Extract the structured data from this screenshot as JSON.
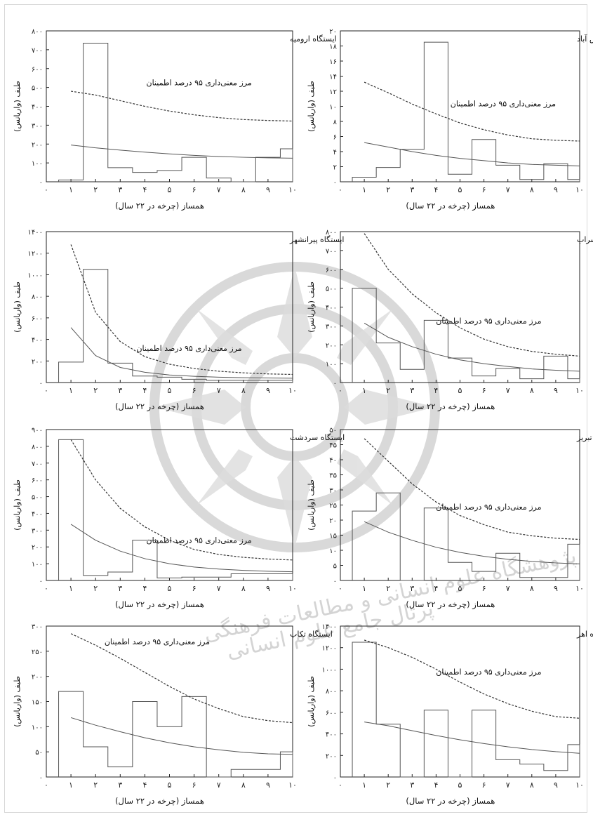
{
  "common": {
    "xlabel": "همساز (چرخه در ۲۲ سال)",
    "ylabel": "طیف (واریانس)",
    "annotation": "مرز معنی‌داری ۹۵ درصد اطمینان",
    "x_ticks": [
      "۰",
      "۱",
      "۲",
      "۳",
      "۴",
      "۵",
      "۶",
      "۷",
      "۸",
      "۹",
      "۱۰"
    ]
  },
  "watermark": {
    "text1": "پژوهشگاه علوم انسانی و مطالعات فرهنگی",
    "text2": "پرتال جامع علوم انسانی"
  },
  "chart_data": [
    {
      "type": "line",
      "title": "ایستگاه ارومیه",
      "xlim": [
        0,
        10
      ],
      "ylim": [
        0,
        800
      ],
      "yticks": [
        "۰",
        "۱۰۰",
        "۲۰۰",
        "۳۰۰",
        "۴۰۰",
        "۵۰۰",
        "۶۰۰",
        "۷۰۰",
        "۸۰۰"
      ],
      "spectrum": [
        10,
        735,
        75,
        50,
        60,
        130,
        20,
        0,
        130,
        175
      ],
      "red_noise": [
        195,
        180,
        168,
        157,
        148,
        140,
        134,
        130,
        127,
        125
      ],
      "significance_95": [
        480,
        460,
        430,
        400,
        375,
        355,
        340,
        330,
        325,
        322
      ]
    },
    {
      "type": "line",
      "title": "ایستگاه پارس آباد",
      "xlim": [
        0,
        10
      ],
      "ylim": [
        0,
        20
      ],
      "yticks": [
        "۰",
        "۲",
        "۴",
        "۶",
        "۸",
        "۱۰",
        "۱۲",
        "۱۴",
        "۱۶",
        "۱۸",
        "۲۰"
      ],
      "spectrum": [
        0.6,
        1.9,
        4.3,
        18.5,
        1.0,
        5.6,
        2.2,
        0.3,
        2.4,
        0.3
      ],
      "red_noise": [
        5.2,
        4.6,
        4.0,
        3.5,
        3.1,
        2.8,
        2.5,
        2.3,
        2.2,
        2.1
      ],
      "significance_95": [
        13.2,
        11.8,
        10.3,
        9.0,
        7.8,
        6.9,
        6.2,
        5.7,
        5.5,
        5.4
      ]
    },
    {
      "type": "line",
      "title": "ایستگاه پیرانشهر",
      "xlim": [
        0,
        10
      ],
      "ylim": [
        0,
        1400
      ],
      "yticks": [
        "۰",
        "۲۰۰",
        "۴۰۰",
        "۶۰۰",
        "۸۰۰",
        "۱۰۰۰",
        "۱۲۰۰",
        "۱۴۰۰"
      ],
      "spectrum": [
        190,
        1050,
        180,
        60,
        50,
        30,
        20,
        20,
        20,
        20
      ],
      "red_noise": [
        510,
        250,
        140,
        95,
        70,
        58,
        50,
        45,
        42,
        40
      ],
      "significance_95": [
        1280,
        650,
        380,
        240,
        170,
        130,
        105,
        90,
        80,
        75
      ]
    },
    {
      "type": "line",
      "title": "ایستگاه سراب",
      "xlim": [
        0,
        10
      ],
      "ylim": [
        0,
        800
      ],
      "yticks": [
        "۰",
        "۱۰۰",
        "۲۰۰",
        "۳۰۰",
        "۴۰۰",
        "۵۰۰",
        "۶۰۰",
        "۷۰۰",
        "۸۰۰"
      ],
      "spectrum": [
        500,
        210,
        70,
        330,
        130,
        35,
        75,
        20,
        140,
        20
      ],
      "red_noise": [
        315,
        240,
        190,
        150,
        120,
        100,
        85,
        72,
        65,
        60
      ],
      "significance_95": [
        790,
        600,
        470,
        370,
        290,
        230,
        190,
        165,
        150,
        140
      ]
    },
    {
      "type": "line",
      "title": "ایستگاه سردشت",
      "xlim": [
        0,
        10
      ],
      "ylim": [
        0,
        900
      ],
      "yticks": [
        "۰",
        "۱۰۰",
        "۲۰۰",
        "۳۰۰",
        "۴۰۰",
        "۵۰۰",
        "۶۰۰",
        "۷۰۰",
        "۸۰۰",
        "۹۰۰"
      ],
      "spectrum": [
        840,
        30,
        50,
        240,
        15,
        20,
        20,
        40,
        40,
        40
      ],
      "red_noise": [
        335,
        240,
        175,
        130,
        100,
        80,
        68,
        60,
        55,
        52
      ],
      "significance_95": [
        840,
        600,
        430,
        320,
        240,
        185,
        155,
        138,
        128,
        122
      ]
    },
    {
      "type": "line",
      "title": "ایستگاه تبریز",
      "xlim": [
        0,
        10
      ],
      "ylim": [
        0,
        50
      ],
      "yticks": [
        "۰",
        "۵",
        "۱۰",
        "۱۵",
        "۲۰",
        "۲۵",
        "۳۰",
        "۳۵",
        "۴۰",
        "۴۵",
        "۵۰"
      ],
      "spectrum": [
        23,
        29,
        0,
        24,
        6,
        3,
        9,
        1,
        1,
        12
      ],
      "red_noise": [
        19.5,
        16,
        13.3,
        11,
        9.3,
        8,
        7,
        6.3,
        5.8,
        5.5
      ],
      "significance_95": [
        47,
        39.5,
        32,
        26,
        21.5,
        18.5,
        16,
        14.8,
        14,
        13.6
      ]
    },
    {
      "type": "line",
      "title": "ایستگاه تکاب",
      "xlim": [
        0,
        10
      ],
      "ylim": [
        0,
        300
      ],
      "yticks": [
        "۰",
        "۵۰",
        "۱۰۰",
        "۱۵۰",
        "۲۰۰",
        "۲۵۰",
        "۳۰۰"
      ],
      "spectrum": [
        170,
        60,
        20,
        150,
        100,
        160,
        0,
        15,
        15,
        50
      ],
      "red_noise": [
        118,
        103,
        90,
        78,
        68,
        60,
        54,
        49,
        46,
        45
      ],
      "significance_95": [
        285,
        262,
        236,
        208,
        180,
        155,
        136,
        120,
        112,
        108
      ]
    },
    {
      "type": "line",
      "title": "ایستگاه اهر",
      "xlim": [
        0,
        10
      ],
      "ylim": [
        0,
        1400
      ],
      "yticks": [
        "۰",
        "۲۰۰",
        "۴۰۰",
        "۶۰۰",
        "۸۰۰",
        "۱۰۰۰",
        "۱۲۰۰",
        "۱۴۰۰"
      ],
      "spectrum": [
        1250,
        490,
        0,
        620,
        0,
        620,
        160,
        120,
        60,
        300
      ],
      "red_noise": [
        510,
        475,
        430,
        385,
        345,
        310,
        280,
        255,
        235,
        220
      ],
      "significance_95": [
        1270,
        1200,
        1110,
        1000,
        880,
        770,
        680,
        610,
        560,
        545
      ]
    }
  ]
}
